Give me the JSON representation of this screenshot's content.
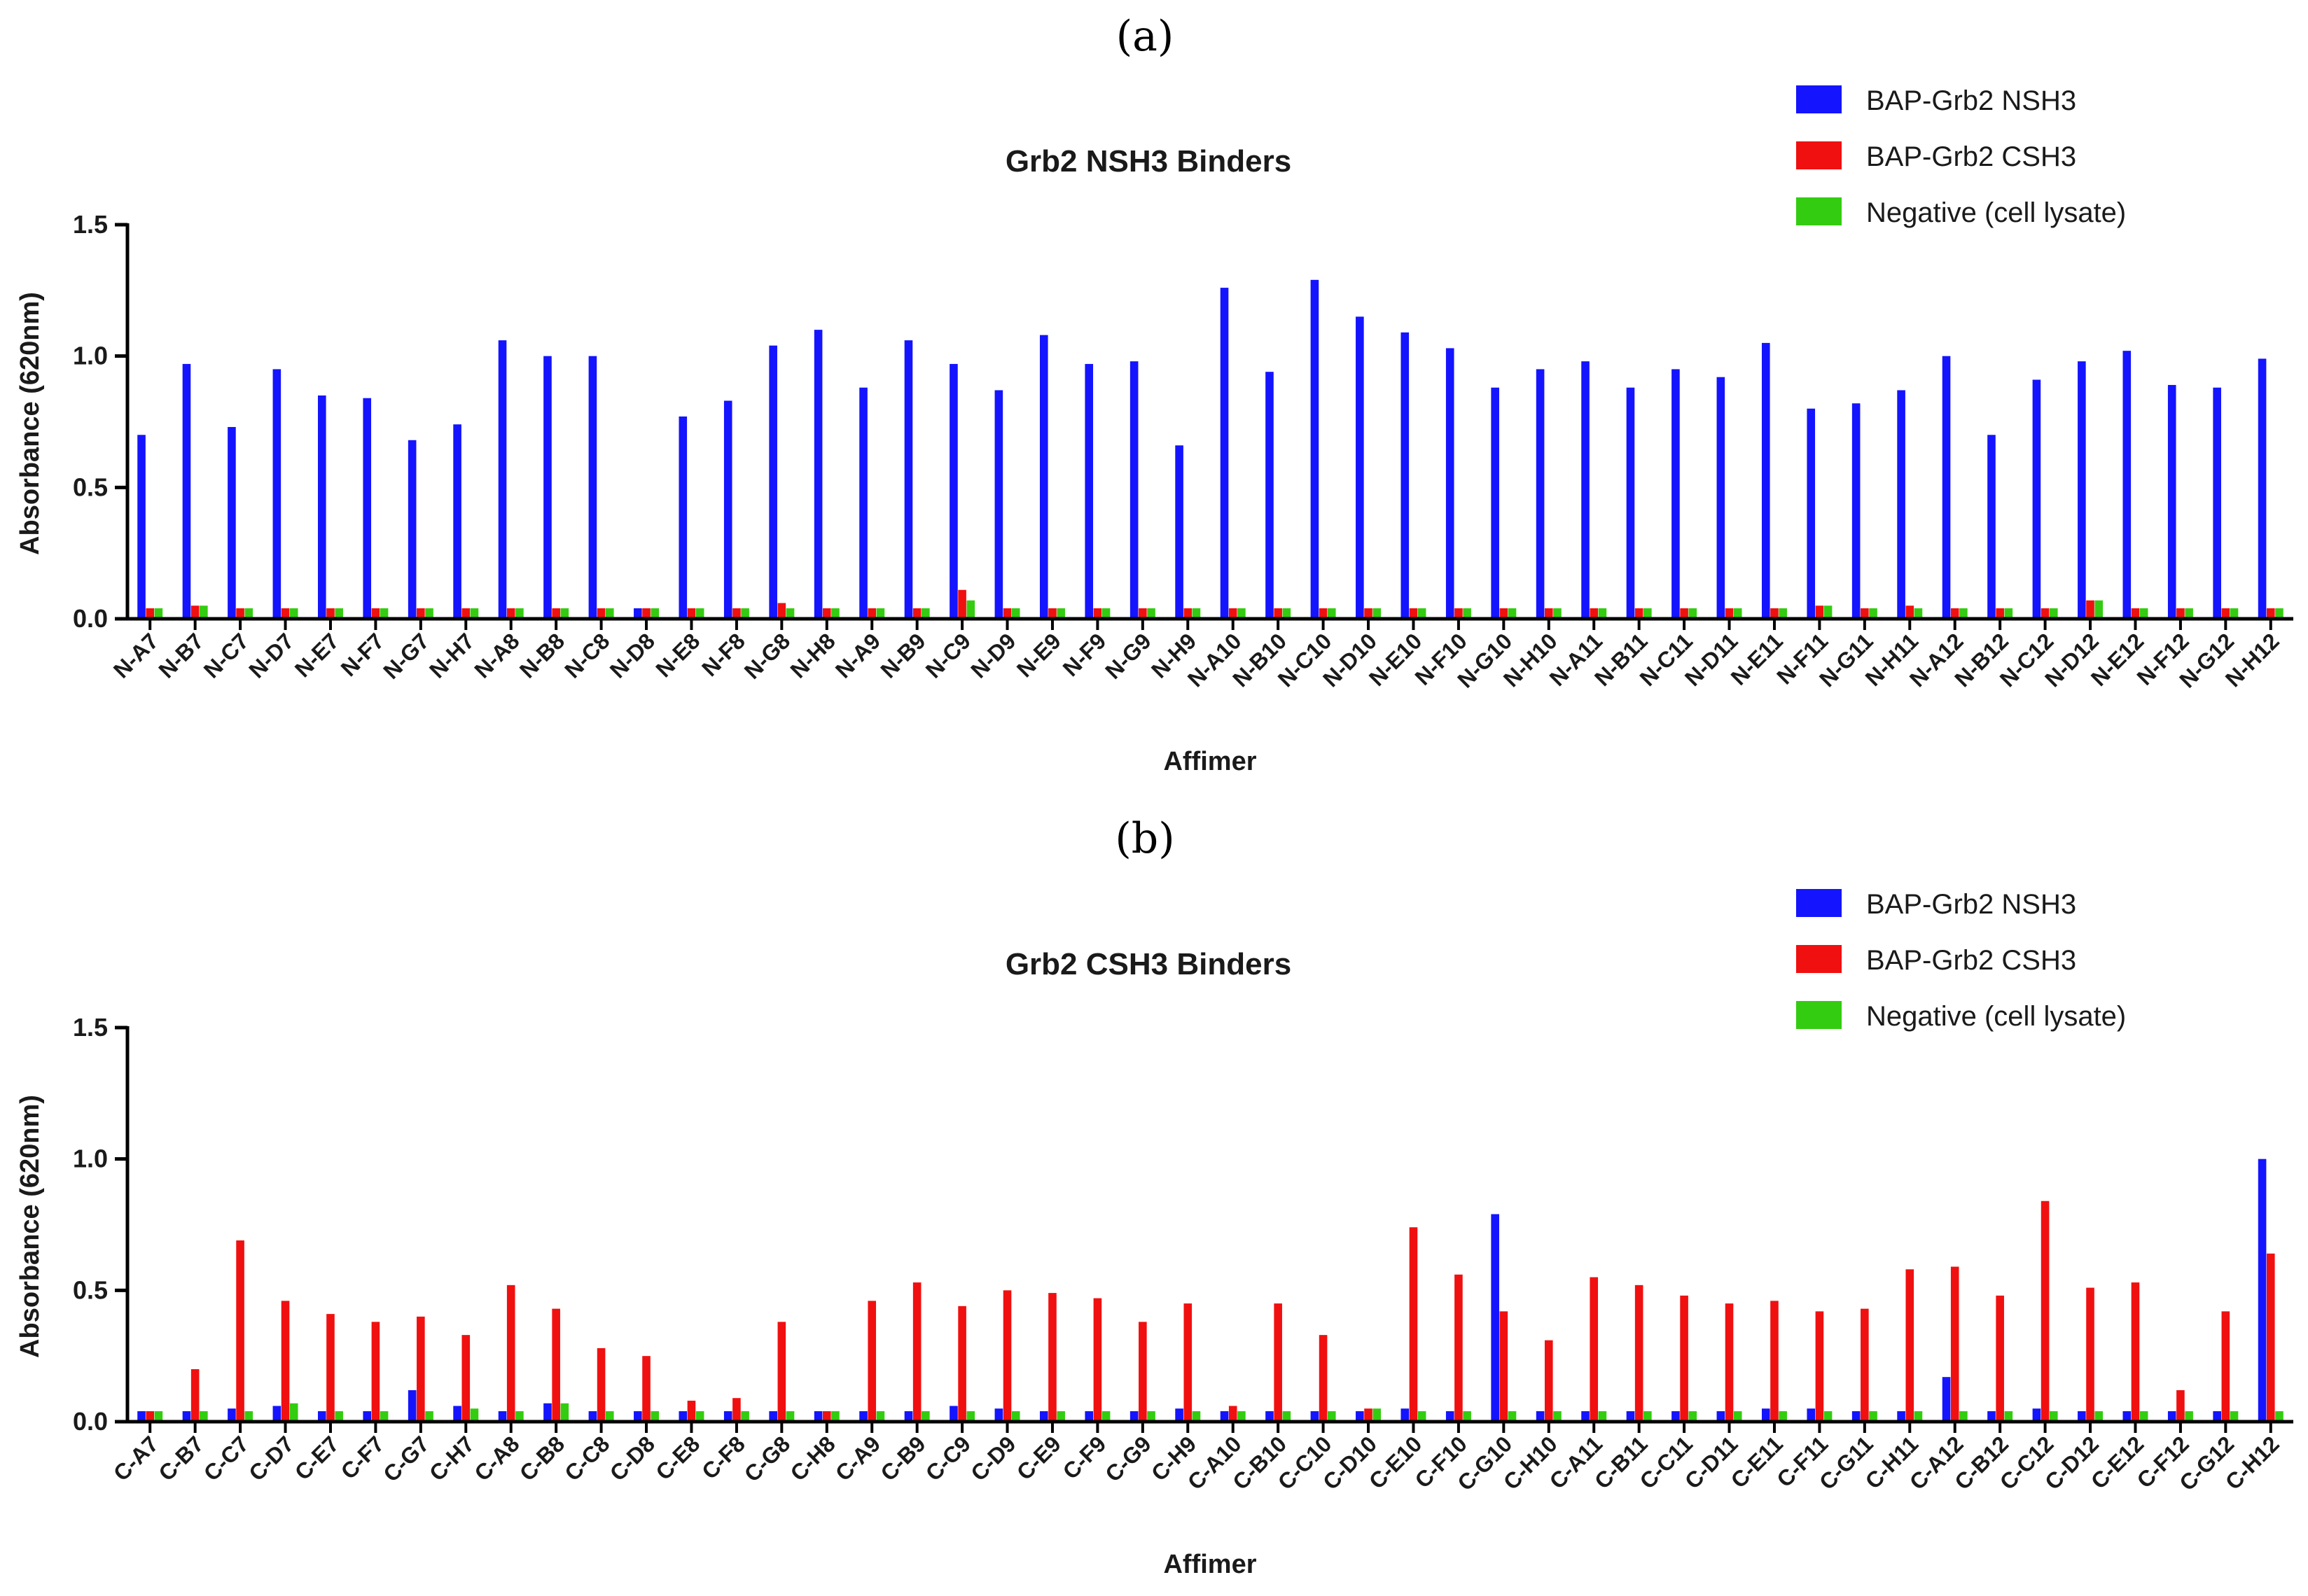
{
  "colors": {
    "nsh3": "#1414ff",
    "csh3": "#f01010",
    "negative": "#33cc11",
    "axis": "#000000"
  },
  "chart_data": [
    {
      "panel_label": "(a)",
      "type": "bar",
      "title": "Grb2 NSH3 Binders",
      "xlabel": "Affimer",
      "ylabel": "Absorbance (620nm)",
      "ylim": [
        0,
        1.5
      ],
      "yticks": [
        "0.0",
        "0.5",
        "1.0",
        "1.5"
      ],
      "legend": "top-right",
      "categories": [
        "N-A7",
        "N-B7",
        "N-C7",
        "N-D7",
        "N-E7",
        "N-F7",
        "N-G7",
        "N-H7",
        "N-A8",
        "N-B8",
        "N-C8",
        "N-D8",
        "N-E8",
        "N-F8",
        "N-G8",
        "N-H8",
        "N-A9",
        "N-B9",
        "N-C9",
        "N-D9",
        "N-E9",
        "N-F9",
        "N-G9",
        "N-H9",
        "N-A10",
        "N-B10",
        "N-C10",
        "N-D10",
        "N-E10",
        "N-F10",
        "N-G10",
        "N-H10",
        "N-A11",
        "N-B11",
        "N-C11",
        "N-D11",
        "N-E11",
        "N-F11",
        "N-G11",
        "N-H11",
        "N-A12",
        "N-B12",
        "N-C12",
        "N-D12",
        "N-E12",
        "N-F12",
        "N-G12",
        "N-H12"
      ],
      "series": [
        {
          "name": "BAP-Grb2 NSH3",
          "color_key": "nsh3",
          "values": [
            0.7,
            0.97,
            0.73,
            0.95,
            0.85,
            0.84,
            0.68,
            0.74,
            1.06,
            1.0,
            1.0,
            0.04,
            0.77,
            0.83,
            1.04,
            1.1,
            0.88,
            1.06,
            0.97,
            0.87,
            1.08,
            0.97,
            0.98,
            0.66,
            1.26,
            0.94,
            1.29,
            1.15,
            1.09,
            1.03,
            0.88,
            0.95,
            0.98,
            0.88,
            0.95,
            0.92,
            1.05,
            0.8,
            0.82,
            0.87,
            1.0,
            0.7,
            0.91,
            0.98,
            1.02,
            0.89,
            0.88,
            0.99
          ]
        },
        {
          "name": "BAP-Grb2 CSH3",
          "color_key": "csh3",
          "values": [
            0.04,
            0.05,
            0.04,
            0.04,
            0.04,
            0.04,
            0.04,
            0.04,
            0.04,
            0.04,
            0.04,
            0.04,
            0.04,
            0.04,
            0.06,
            0.04,
            0.04,
            0.04,
            0.11,
            0.04,
            0.04,
            0.04,
            0.04,
            0.04,
            0.04,
            0.04,
            0.04,
            0.04,
            0.04,
            0.04,
            0.04,
            0.04,
            0.04,
            0.04,
            0.04,
            0.04,
            0.04,
            0.05,
            0.04,
            0.05,
            0.04,
            0.04,
            0.04,
            0.07,
            0.04,
            0.04,
            0.04,
            0.04
          ]
        },
        {
          "name": "Negative (cell lysate)",
          "color_key": "negative",
          "values": [
            0.04,
            0.05,
            0.04,
            0.04,
            0.04,
            0.04,
            0.04,
            0.04,
            0.04,
            0.04,
            0.04,
            0.04,
            0.04,
            0.04,
            0.04,
            0.04,
            0.04,
            0.04,
            0.07,
            0.04,
            0.04,
            0.04,
            0.04,
            0.04,
            0.04,
            0.04,
            0.04,
            0.04,
            0.04,
            0.04,
            0.04,
            0.04,
            0.04,
            0.04,
            0.04,
            0.04,
            0.04,
            0.05,
            0.04,
            0.04,
            0.04,
            0.04,
            0.04,
            0.07,
            0.04,
            0.04,
            0.04,
            0.04
          ]
        }
      ]
    },
    {
      "panel_label": "(b)",
      "type": "bar",
      "title": "Grb2 CSH3 Binders",
      "xlabel": "Affimer",
      "ylabel": "Absorbance (620nm)",
      "ylim": [
        0,
        1.5
      ],
      "yticks": [
        "0.0",
        "0.5",
        "1.0",
        "1.5"
      ],
      "legend": "top-right",
      "categories": [
        "C-A7",
        "C-B7",
        "C-C7",
        "C-D7",
        "C-E7",
        "C-F7",
        "C-G7",
        "C-H7",
        "C-A8",
        "C-B8",
        "C-C8",
        "C-D8",
        "C-E8",
        "C-F8",
        "C-G8",
        "C-H8",
        "C-A9",
        "C-B9",
        "C-C9",
        "C-D9",
        "C-E9",
        "C-F9",
        "C-G9",
        "C-H9",
        "C-A10",
        "C-B10",
        "C-C10",
        "C-D10",
        "C-E10",
        "C-F10",
        "C-G10",
        "C-H10",
        "C-A11",
        "C-B11",
        "C-C11",
        "C-D11",
        "C-E11",
        "C-F11",
        "C-G11",
        "C-H11",
        "C-A12",
        "C-B12",
        "C-C12",
        "C-D12",
        "C-E12",
        "C-F12",
        "C-G12",
        "C-H12"
      ],
      "series": [
        {
          "name": "BAP-Grb2 NSH3",
          "color_key": "nsh3",
          "values": [
            0.04,
            0.04,
            0.05,
            0.06,
            0.04,
            0.04,
            0.12,
            0.06,
            0.04,
            0.07,
            0.04,
            0.04,
            0.04,
            0.04,
            0.04,
            0.04,
            0.04,
            0.04,
            0.06,
            0.05,
            0.04,
            0.04,
            0.04,
            0.05,
            0.04,
            0.04,
            0.04,
            0.04,
            0.05,
            0.04,
            0.79,
            0.04,
            0.04,
            0.04,
            0.04,
            0.04,
            0.05,
            0.05,
            0.04,
            0.04,
            0.17,
            0.04,
            0.05,
            0.04,
            0.04,
            0.04,
            0.04,
            1.0
          ]
        },
        {
          "name": "BAP-Grb2 CSH3",
          "color_key": "csh3",
          "values": [
            0.04,
            0.2,
            0.69,
            0.46,
            0.41,
            0.38,
            0.4,
            0.33,
            0.52,
            0.43,
            0.28,
            0.25,
            0.08,
            0.09,
            0.38,
            0.04,
            0.46,
            0.53,
            0.44,
            0.5,
            0.49,
            0.47,
            0.38,
            0.45,
            0.06,
            0.45,
            0.33,
            0.05,
            0.74,
            0.56,
            0.42,
            0.31,
            0.55,
            0.52,
            0.48,
            0.45,
            0.46,
            0.42,
            0.43,
            0.58,
            0.59,
            0.48,
            0.84,
            0.51,
            0.53,
            0.12,
            0.42,
            0.64
          ]
        },
        {
          "name": "Negative (cell lysate)",
          "color_key": "negative",
          "values": [
            0.04,
            0.04,
            0.04,
            0.07,
            0.04,
            0.04,
            0.04,
            0.05,
            0.04,
            0.07,
            0.04,
            0.04,
            0.04,
            0.04,
            0.04,
            0.04,
            0.04,
            0.04,
            0.04,
            0.04,
            0.04,
            0.04,
            0.04,
            0.04,
            0.04,
            0.04,
            0.04,
            0.05,
            0.04,
            0.04,
            0.04,
            0.04,
            0.04,
            0.04,
            0.04,
            0.04,
            0.04,
            0.04,
            0.04,
            0.04,
            0.04,
            0.04,
            0.04,
            0.04,
            0.04,
            0.04,
            0.04,
            0.04
          ]
        }
      ]
    }
  ]
}
